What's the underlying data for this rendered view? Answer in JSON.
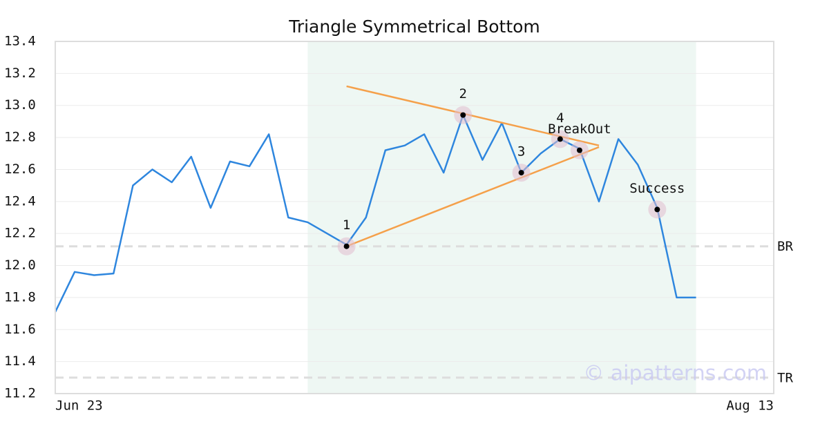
{
  "chart_data": {
    "type": "line",
    "title": "Triangle Symmetrical Bottom",
    "x": [
      0,
      1,
      2,
      3,
      4,
      5,
      6,
      7,
      8,
      9,
      10,
      11,
      12,
      13,
      14,
      15,
      16,
      17,
      18,
      19,
      20,
      21,
      22,
      23,
      24,
      25,
      26,
      27,
      28,
      29,
      30,
      31,
      32,
      33
    ],
    "values": [
      11.71,
      11.96,
      11.94,
      11.95,
      12.5,
      12.6,
      12.52,
      12.68,
      12.36,
      12.65,
      12.62,
      12.82,
      12.3,
      12.27,
      12.2,
      12.13,
      12.3,
      12.72,
      12.75,
      12.82,
      12.58,
      12.94,
      12.66,
      12.89,
      12.58,
      12.7,
      12.79,
      12.73,
      12.4,
      12.79,
      12.63,
      12.36,
      11.8,
      11.8
    ],
    "color": "#2e86de",
    "xlim": [
      0,
      37
    ],
    "xticks": [
      {
        "value": 0,
        "label": "Jun 23"
      },
      {
        "value": 37,
        "label": "Aug 13"
      }
    ],
    "ylim": [
      11.2,
      13.4
    ],
    "yticks": [
      11.2,
      11.4,
      11.6,
      11.8,
      {
        "value": 12,
        "label": "12.0"
      },
      12.2,
      12.4,
      12.6,
      12.8,
      {
        "value": 13,
        "label": "13.0"
      },
      13.2,
      13.4
    ],
    "grid": true,
    "highlight_range": [
      13,
      33
    ],
    "highlight_color": "#eef7f3",
    "patterns": [
      {
        "label": "1",
        "x": 15,
        "y": 12.12
      },
      {
        "label": "2",
        "x": 21,
        "y": 12.94
      },
      {
        "label": "3",
        "x": 24,
        "y": 12.58
      },
      {
        "label": "4",
        "x": 26,
        "y": 12.79
      },
      {
        "label": "BreakOut",
        "x": 27,
        "y": 12.72
      },
      {
        "label": "Success",
        "x": 31,
        "y": 12.35
      }
    ],
    "trendlines": {
      "color": "#f5a04a",
      "lines": [
        {
          "x": [
            15,
            28
          ],
          "y": [
            13.12,
            12.75
          ]
        },
        {
          "x": [
            15,
            28
          ],
          "y": [
            12.12,
            12.74
          ]
        }
      ]
    },
    "levels": [
      {
        "label": "BR",
        "value": 12.12
      },
      {
        "label": "TR",
        "value": 11.3
      }
    ],
    "watermark": "© aipatterns.com"
  }
}
